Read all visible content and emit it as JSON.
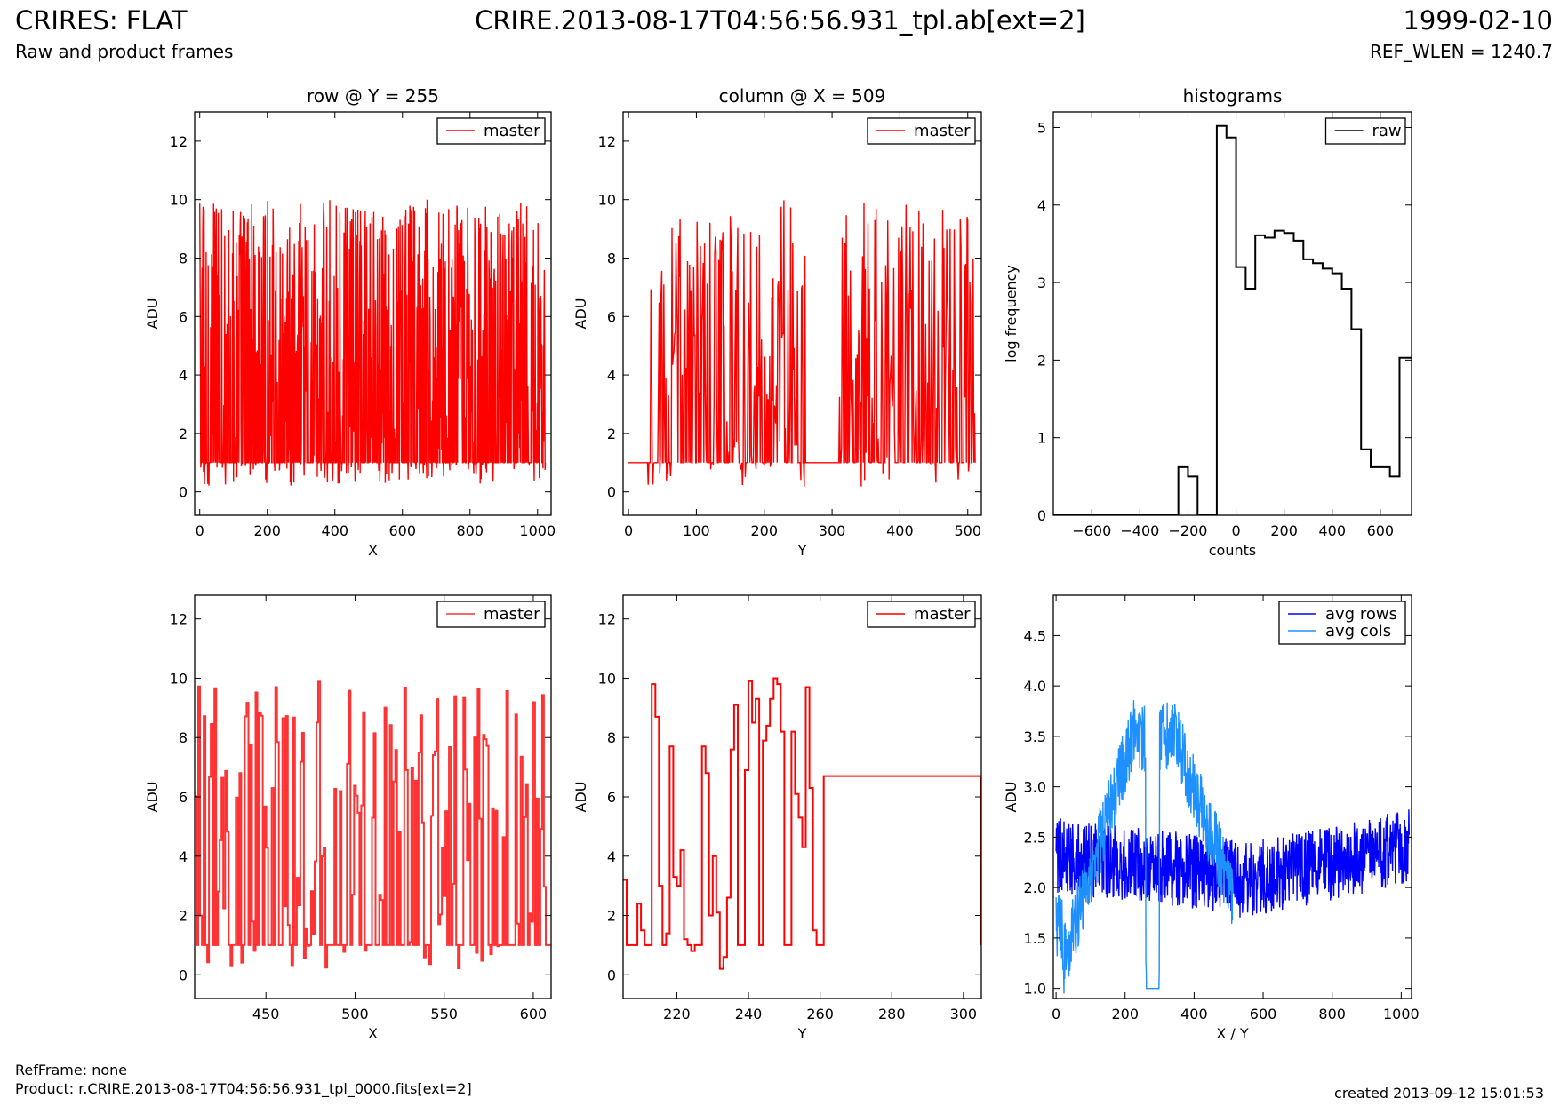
{
  "header": {
    "title": "CRIRES: FLAT",
    "subtitle": "Raw and product frames",
    "center_title": "CRIRE.2013-08-17T04:56:56.931_tpl.ab[ext=2]",
    "date": "1999-02-10",
    "ref_wlen": "REF_WLEN = 1240.7"
  },
  "footer": {
    "refframe": "RefFrame: none",
    "product": "Product: r.CRIRE.2013-08-17T04:56:56.931_tpl_0000.fits[ext=2]",
    "created": "created 2013-09-12 15:01:53"
  },
  "colors": {
    "red": "#ff0000",
    "light_red": "#ff3333",
    "blue": "#0000ff",
    "light_blue": "#1e90ff",
    "black": "#000000"
  },
  "chart_data": [
    {
      "id": "row",
      "type": "line",
      "title": "row @ Y = 255",
      "xlabel": "X",
      "ylabel": "ADU",
      "xlim": [
        -15,
        1040
      ],
      "ylim": [
        -0.8,
        13
      ],
      "xticks": [
        0,
        200,
        400,
        600,
        800,
        1000
      ],
      "yticks": [
        0,
        2,
        4,
        6,
        8,
        10,
        12
      ],
      "legend": {
        "position": "top-right",
        "entries": [
          {
            "label": "master",
            "color": "#ff0000"
          }
        ]
      },
      "series": [
        {
          "name": "master",
          "color": "#ff0000",
          "generated": "noise",
          "x_range": [
            0,
            1023
          ],
          "n": 1024,
          "base": 1,
          "max": 10,
          "min": 0.2
        }
      ]
    },
    {
      "id": "column",
      "type": "line",
      "title": "column @ X = 509",
      "xlabel": "Y",
      "ylabel": "ADU",
      "xlim": [
        -8,
        520
      ],
      "ylim": [
        -0.8,
        13
      ],
      "xticks": [
        0,
        100,
        200,
        300,
        400,
        500
      ],
      "yticks": [
        0,
        2,
        4,
        6,
        8,
        10,
        12
      ],
      "legend": {
        "position": "top-right",
        "entries": [
          {
            "label": "master",
            "color": "#ff0000"
          }
        ]
      },
      "series": [
        {
          "name": "master",
          "color": "#ff0000",
          "generated": "column",
          "x_range": [
            0,
            511
          ],
          "n": 512,
          "flat_segments": [
            [
              0,
              28
            ],
            [
              262,
              310
            ]
          ],
          "flat_value": 1,
          "max": 10,
          "min": 0.1
        }
      ]
    },
    {
      "id": "histograms",
      "type": "step",
      "title": "histograms",
      "xlabel": "counts",
      "ylabel": "log frequency",
      "xlim": [
        -760,
        730
      ],
      "ylim": [
        0,
        5.2
      ],
      "xticks": [
        -600,
        -400,
        -200,
        0,
        200,
        400,
        600
      ],
      "yticks": [
        0,
        1,
        2,
        3,
        4,
        5
      ],
      "legend": {
        "position": "top-right",
        "entries": [
          {
            "label": "raw",
            "color": "#000000"
          }
        ]
      },
      "series": [
        {
          "name": "raw",
          "color": "#000000",
          "bin_edges": [
            -760,
            -240,
            -200,
            -160,
            -80,
            -40,
            0,
            40,
            80,
            120,
            160,
            200,
            240,
            280,
            320,
            360,
            400,
            440,
            480,
            520,
            560,
            640,
            680,
            730
          ],
          "values": [
            0,
            0.62,
            0.5,
            0,
            5.02,
            4.87,
            3.2,
            2.92,
            3.61,
            3.58,
            3.67,
            3.64,
            3.54,
            3.3,
            3.25,
            3.18,
            3.12,
            2.92,
            2.4,
            0.85,
            0.62,
            0.5,
            2.03
          ]
        }
      ]
    },
    {
      "id": "row-zoom",
      "type": "step",
      "xlabel": "X",
      "ylabel": "ADU",
      "xlim": [
        410,
        610
      ],
      "ylim": [
        -0.8,
        12.8
      ],
      "xticks": [
        450,
        500,
        550,
        600
      ],
      "yticks": [
        0,
        2,
        4,
        6,
        8,
        10,
        12
      ],
      "legend": {
        "position": "top-right",
        "entries": [
          {
            "label": "master",
            "color": "#ff3333"
          }
        ]
      },
      "series": [
        {
          "name": "master",
          "color": "#ff3333",
          "generated": "noise",
          "x_range": [
            410,
            610
          ],
          "n": 200,
          "base": 1,
          "max": 9.9,
          "min": 0.2
        }
      ]
    },
    {
      "id": "column-zoom",
      "type": "step",
      "xlabel": "Y",
      "ylabel": "ADU",
      "xlim": [
        205,
        305
      ],
      "ylim": [
        -0.8,
        12.8
      ],
      "xticks": [
        220,
        240,
        260,
        280,
        300
      ],
      "yticks": [
        0,
        2,
        4,
        6,
        8,
        10,
        12
      ],
      "legend": {
        "position": "top-right",
        "entries": [
          {
            "label": "master",
            "color": "#ff0000"
          }
        ]
      },
      "series": [
        {
          "name": "master",
          "color": "#ff0000",
          "x": [
            205,
            206,
            207,
            208,
            209,
            210,
            211,
            212,
            213,
            214,
            215,
            216,
            217,
            218,
            219,
            220,
            221,
            222,
            223,
            224,
            225,
            226,
            227,
            228,
            229,
            230,
            231,
            232,
            233,
            234,
            235,
            236,
            237,
            238,
            239,
            240,
            241,
            242,
            243,
            244,
            245,
            246,
            247,
            248,
            249,
            250,
            251,
            252,
            253,
            254,
            255,
            256,
            257,
            258,
            259,
            260,
            261,
            305
          ],
          "y": [
            3.2,
            1,
            1,
            1,
            2.4,
            1.5,
            1,
            1,
            9.8,
            8.7,
            3,
            1,
            1.4,
            7.7,
            3.3,
            3,
            4.2,
            1.2,
            1,
            0.8,
            1,
            1,
            7.7,
            6.8,
            2,
            4,
            2.1,
            0.2,
            0.6,
            2.6,
            7.6,
            9.1,
            1,
            1,
            6.9,
            9.9,
            8.5,
            9.3,
            1,
            7.9,
            8.4,
            9.3,
            10,
            9.8,
            8.2,
            1,
            1,
            8.2,
            6.1,
            5.3,
            4.3,
            9.7,
            6.3,
            1.5,
            1,
            1,
            6.7,
            1
          ]
        }
      ]
    },
    {
      "id": "averages",
      "type": "line",
      "xlabel": "X / Y",
      "ylabel": "ADU",
      "xlim": [
        -8,
        1030
      ],
      "ylim": [
        0.9,
        4.9
      ],
      "xticks": [
        0,
        200,
        400,
        600,
        800,
        1000
      ],
      "yticks": [
        1.0,
        1.5,
        2.0,
        2.5,
        3.0,
        3.5,
        4.0,
        4.5
      ],
      "legend": {
        "position": "top-right",
        "entries": [
          {
            "label": "avg rows",
            "color": "#0000ff"
          },
          {
            "label": "avg cols",
            "color": "#1e90ff"
          }
        ]
      },
      "series": [
        {
          "name": "avg rows",
          "color": "#0000ff",
          "generated": "rows",
          "x_range": [
            0,
            1023
          ]
        },
        {
          "name": "avg cols",
          "color": "#1e90ff",
          "generated": "cols",
          "x_range": [
            0,
            511
          ]
        }
      ]
    }
  ]
}
